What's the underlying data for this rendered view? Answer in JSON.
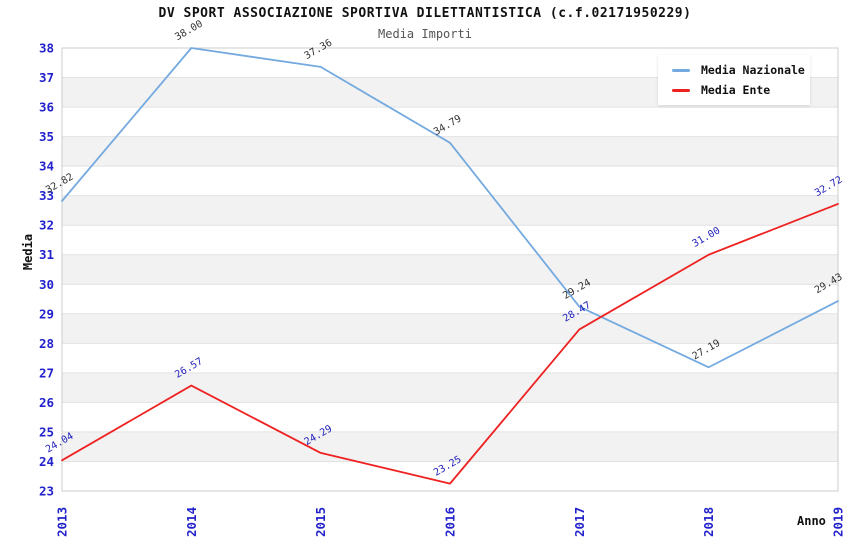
{
  "title": "DV SPORT ASSOCIAZIONE SPORTIVA DILETTANTISTICA (c.f.02171950229)",
  "subtitle": "Media Importi",
  "chart_data": {
    "type": "line",
    "x": [
      "2013",
      "2014",
      "2015",
      "2016",
      "2017",
      "2018",
      "2019"
    ],
    "series": [
      {
        "name": "Media Nazionale",
        "color": "#74aadf",
        "label_color": "#333333",
        "values": [
          32.82,
          38.0,
          37.36,
          34.79,
          29.24,
          27.19,
          29.43
        ]
      },
      {
        "name": "Media Ente",
        "color": "#ee2222",
        "label_color": "#2222bb",
        "values": [
          24.04,
          26.57,
          24.29,
          23.25,
          28.47,
          31.0,
          32.72
        ]
      }
    ],
    "xlabel": "Anno",
    "ylabel": "Media",
    "ylim": [
      23,
      38
    ],
    "ytick_step": 1,
    "yticks": [
      23,
      24,
      25,
      26,
      27,
      28,
      29,
      30,
      31,
      32,
      33,
      34,
      35,
      36,
      37,
      38
    ],
    "grid": "horizontal-bands",
    "legend_position": "top-right",
    "band_colors": [
      "#ffffff",
      "#f2f2f2"
    ],
    "gridline_color": "#e2e2e2",
    "border_color": "#cccccc",
    "tick_color": "#2222cc"
  }
}
